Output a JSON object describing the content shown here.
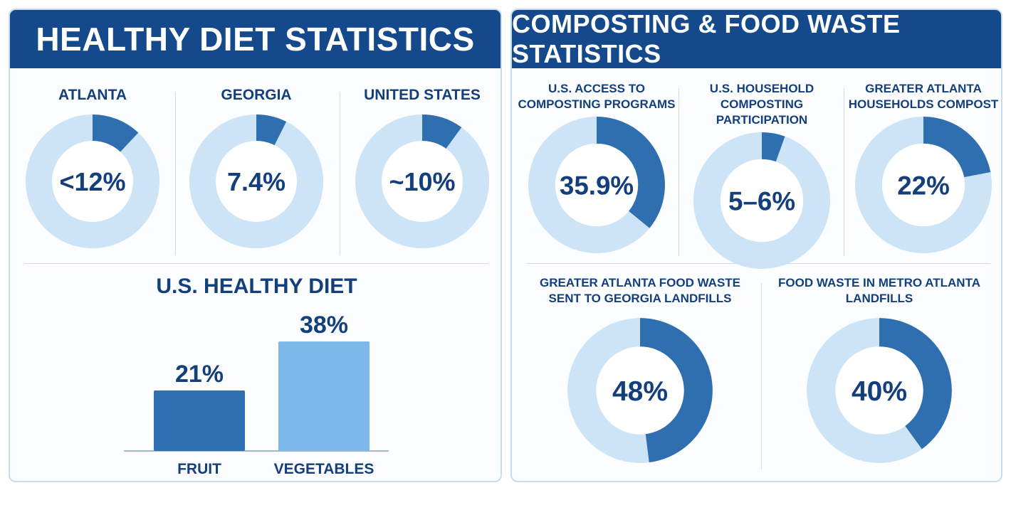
{
  "left_panel": {
    "title": "HEALTHY DIET STATISTICS"
  },
  "right_panel": {
    "title": "COMPOSTING & FOOD WASTE STATISTICS"
  },
  "chart_data": [
    {
      "type": "pie",
      "title": "ATLANTA",
      "value_label": "<12%",
      "value": 12,
      "colors": {
        "filled": "#2f6fb0",
        "remaining": "#cde3f6"
      }
    },
    {
      "type": "pie",
      "title": "GEORGIA",
      "value_label": "7.4%",
      "value": 7.4,
      "colors": {
        "filled": "#2f6fb0",
        "remaining": "#cde3f6"
      }
    },
    {
      "type": "pie",
      "title": "UNITED STATES",
      "value_label": "~10%",
      "value": 10,
      "colors": {
        "filled": "#2f6fb0",
        "remaining": "#cde3f6"
      }
    },
    {
      "type": "bar",
      "title": "U.S. HEALTHY DIET",
      "categories": [
        "FRUIT",
        "VEGETABLES"
      ],
      "values": [
        21,
        38
      ],
      "value_labels": [
        "21%",
        "38%"
      ],
      "colors": [
        "#2f6fb0",
        "#7db8e8"
      ]
    },
    {
      "type": "pie",
      "title": "U.S. ACCESS TO\nCOMPOSTING PROGRAMS",
      "value_label": "35.9%",
      "value": 35.9,
      "colors": {
        "filled": "#2f6fb0",
        "remaining": "#cde3f6"
      }
    },
    {
      "type": "pie",
      "title": "U.S. HOUSEHOLD\nCOMPOSTING PARTICIPATION",
      "value_label": "5–6%",
      "value": 5.5,
      "colors": {
        "filled": "#2f6fb0",
        "remaining": "#cde3f6"
      }
    },
    {
      "type": "pie",
      "title": "GREATER ATLANTA\nHOUSEHOLDS COMPOST",
      "value_label": "22%",
      "value": 22,
      "colors": {
        "filled": "#2f6fb0",
        "remaining": "#cde3f6"
      }
    },
    {
      "type": "pie",
      "title": "GREATER ATLANTA FOOD WASTE\nSENT TO GEORGIA LANDFILLS",
      "value_label": "48%",
      "value": 48,
      "colors": {
        "filled": "#2f6fb0",
        "remaining": "#cde3f6"
      }
    },
    {
      "type": "pie",
      "title": "FOOD WASTE IN METRO ATLANTA\nLANDFILLS",
      "value_label": "40%",
      "value": 40,
      "colors": {
        "filled": "#2f6fb0",
        "remaining": "#cde3f6"
      }
    }
  ]
}
